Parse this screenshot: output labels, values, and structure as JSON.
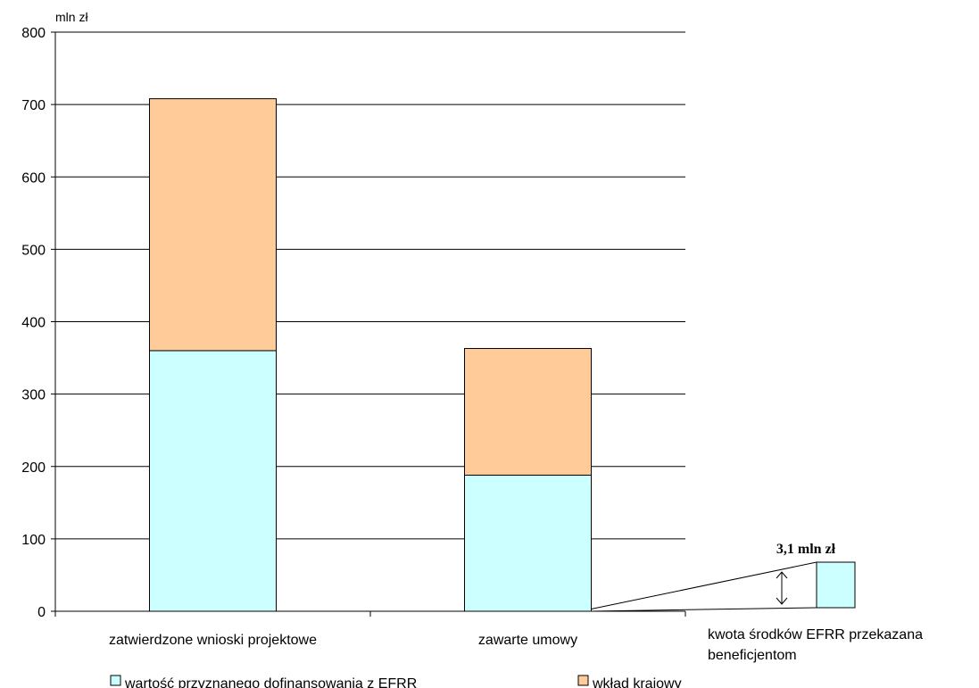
{
  "chart_data": {
    "type": "bar",
    "stacked": true,
    "y_unit_label": "mln zł",
    "ylim": [
      0,
      800
    ],
    "yticks": [
      "0",
      "100",
      "200",
      "300",
      "400",
      "500",
      "600",
      "700",
      "800"
    ],
    "grid": true,
    "categories": [
      "zatwierdzone wnioski projektowe",
      "zawarte umowy"
    ],
    "series": [
      {
        "name": "wartość przyznanego dofinansowania z EFRR",
        "color": "#ccffff",
        "values": [
          360,
          188
        ]
      },
      {
        "name": "wkład krajowy",
        "color": "#ffcc99",
        "values": [
          348,
          175
        ]
      }
    ],
    "inset": {
      "label_lines": [
        "kwota środków EFRR przekazana",
        "beneficjentom"
      ],
      "value": 3.1,
      "value_label": "3,1 mln zł",
      "color": "#ccffff"
    },
    "legend_position": "bottom"
  }
}
